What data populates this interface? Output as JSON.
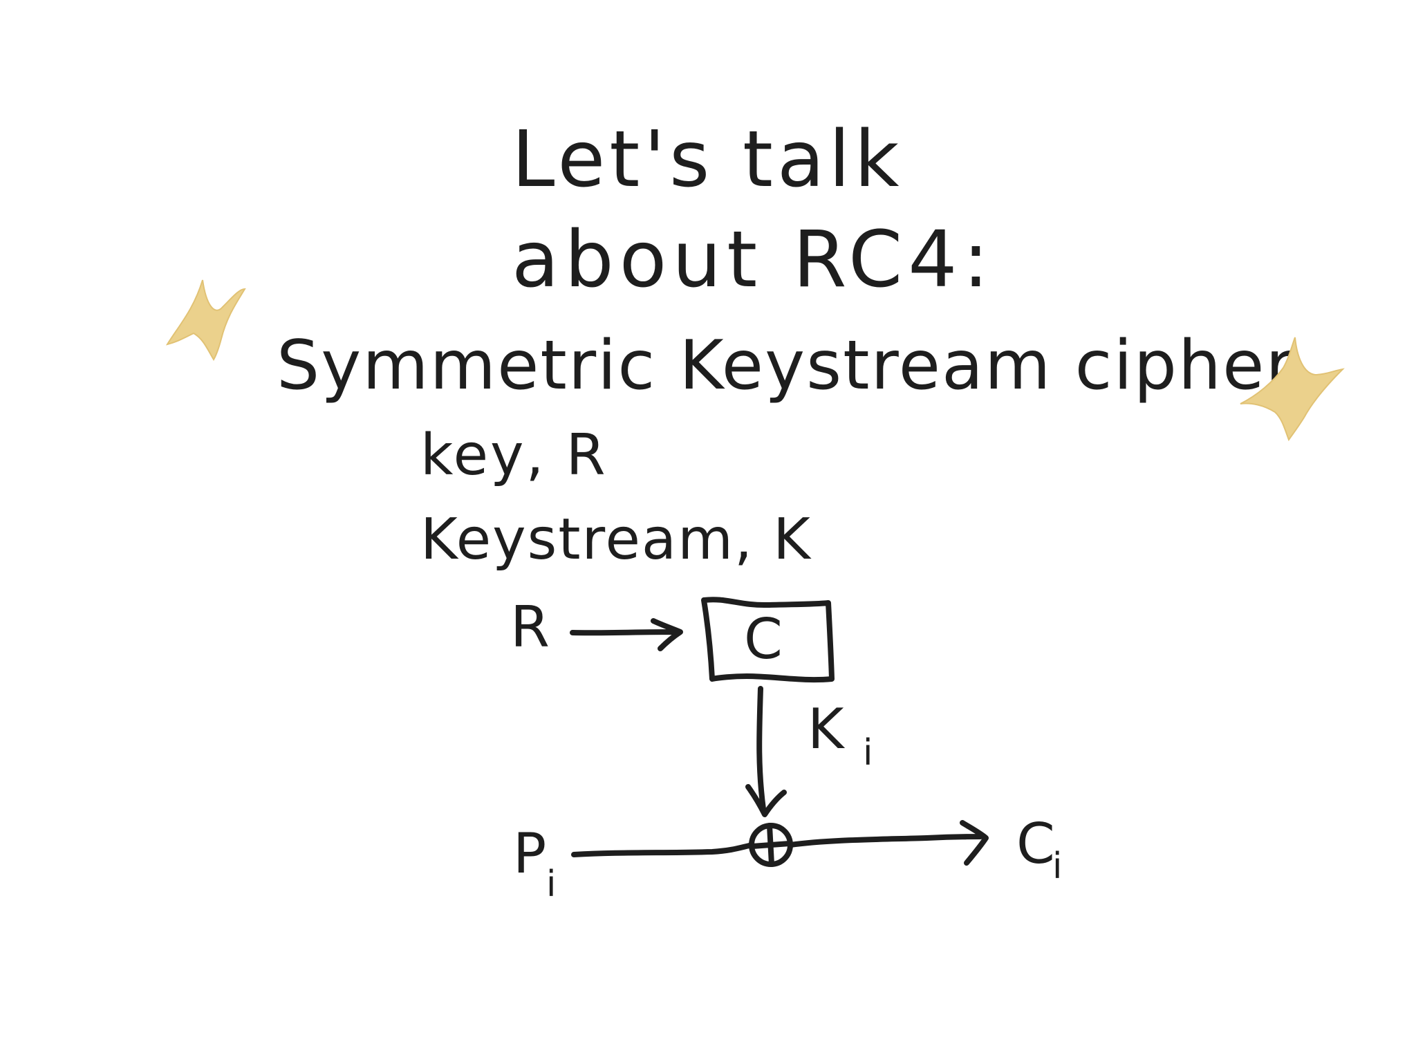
{
  "title": {
    "line1": "Let's talk",
    "line2": "about RC4:"
  },
  "subtitle": "Symmetric Keystream cipher",
  "definitions": {
    "key": "key, R",
    "keystream": "Keystream, K"
  },
  "diagram": {
    "input_label": "R",
    "cipher_box_label": "C",
    "keystream_label_base": "K",
    "keystream_label_sub": "i",
    "plaintext_label_base": "P",
    "plaintext_label_sub": "i",
    "ciphertext_label_base": "C",
    "ciphertext_label_sub": "i",
    "xor_operator": "⊕"
  },
  "decorations": {
    "sparkle_color": "#ebd18c",
    "ink_color": "#1e1e1e"
  }
}
